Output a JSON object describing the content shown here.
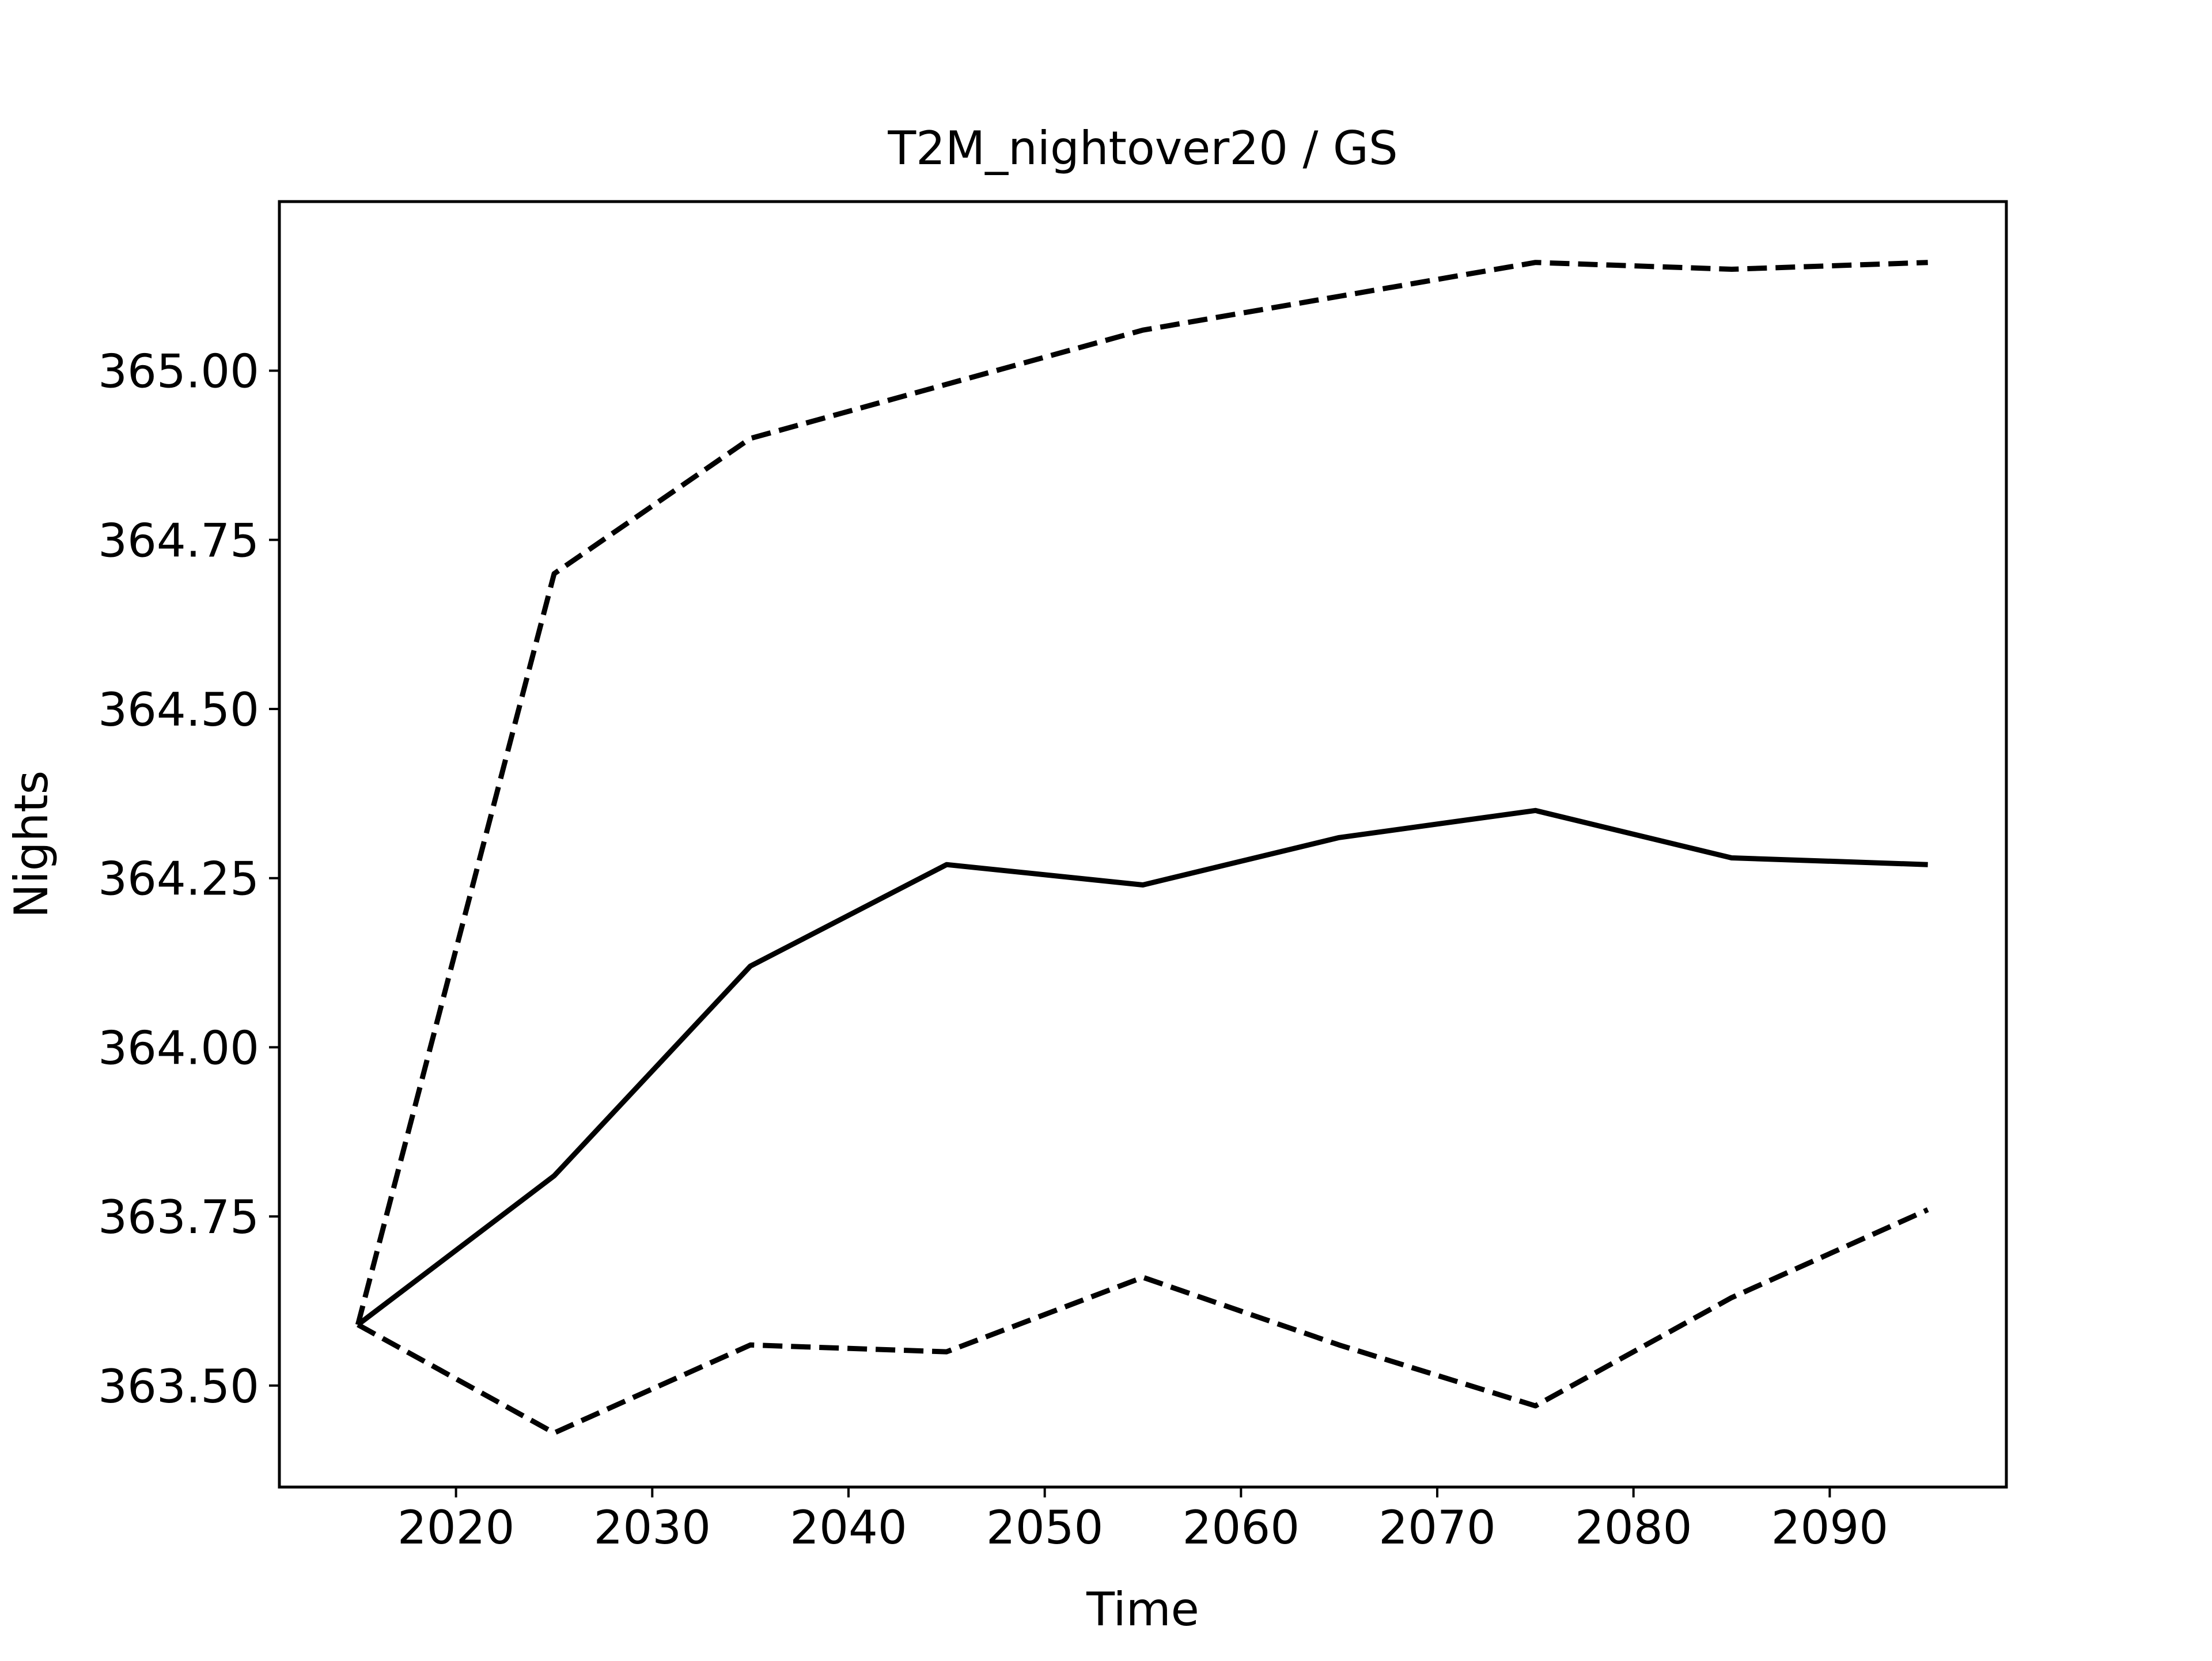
{
  "chart_data": {
    "type": "line",
    "title": "T2M_nightover20 / GS",
    "xlabel": "Time",
    "ylabel": "Nights",
    "xlim": [
      2011,
      2099
    ],
    "ylim": [
      363.35,
      365.25
    ],
    "xticks": [
      2020,
      2030,
      2040,
      2050,
      2060,
      2070,
      2080,
      2090
    ],
    "xtick_labels": [
      "2020",
      "2030",
      "2040",
      "2050",
      "2060",
      "2070",
      "2080",
      "2090"
    ],
    "yticks": [
      363.5,
      363.75,
      364.0,
      364.25,
      364.5,
      364.75,
      365.0
    ],
    "ytick_labels": [
      "363.50",
      "363.75",
      "364.00",
      "364.25",
      "364.50",
      "364.75",
      "365.00"
    ],
    "grid": false,
    "legend": false,
    "x": [
      2015,
      2025,
      2035,
      2045,
      2055,
      2065,
      2075,
      2085,
      2095
    ],
    "series": [
      {
        "style": "dashed",
        "color": "#000000",
        "values": [
          363.59,
          364.7,
          364.9,
          364.98,
          365.06,
          365.11,
          365.16,
          365.15,
          365.16
        ]
      },
      {
        "style": "solid",
        "color": "#000000",
        "values": [
          363.59,
          363.81,
          364.12,
          364.27,
          364.24,
          364.31,
          364.35,
          364.28,
          364.27
        ]
      },
      {
        "style": "dashed",
        "color": "#000000",
        "values": [
          363.59,
          363.43,
          363.56,
          363.55,
          363.66,
          363.56,
          363.47,
          363.63,
          363.76
        ]
      }
    ]
  }
}
